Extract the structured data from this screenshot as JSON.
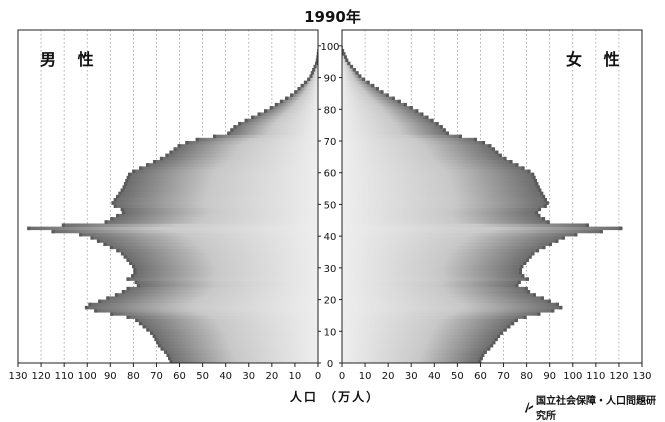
{
  "chart_data": {
    "type": "population-pyramid",
    "title": "1990年",
    "left_panel_label": "男 性",
    "right_panel_label": "女 性",
    "xlabel": "人口 （万人）",
    "source": "国立社会保障・人口問題研究所",
    "x_ticks": [
      130,
      120,
      110,
      100,
      90,
      80,
      70,
      60,
      50,
      40,
      30,
      20,
      10,
      0
    ],
    "age_ticks": [
      0,
      10,
      20,
      30,
      40,
      50,
      60,
      70,
      80,
      90,
      100
    ],
    "xlim": [
      0,
      130
    ],
    "ylim": [
      0,
      105
    ],
    "age_key_points": [
      0,
      3,
      5,
      9,
      14,
      15,
      16,
      17,
      18,
      19,
      21,
      22,
      24,
      25,
      26,
      28,
      30,
      35,
      40,
      41,
      42,
      43,
      44,
      45,
      46,
      47,
      48,
      50,
      55,
      60,
      65,
      69,
      70,
      71,
      72,
      75,
      80,
      85,
      90,
      95,
      100
    ],
    "series": [
      {
        "name": "男性",
        "values": [
          64,
          66,
          69,
          72,
          80,
          86,
          94,
          100,
          102,
          97,
          90,
          86,
          82,
          75,
          84,
          80,
          80,
          86,
          100,
          107,
          124,
          128,
          94,
          91,
          89,
          86,
          84,
          90,
          85,
          82,
          67,
          60,
          55,
          51,
          40,
          36,
          22,
          11,
          4,
          1,
          0
        ]
      },
      {
        "name": "女性",
        "values": [
          60,
          62,
          65,
          69,
          77,
          83,
          89,
          95,
          96,
          92,
          86,
          82,
          80,
          73,
          82,
          78,
          78,
          84,
          98,
          106,
          120,
          123,
          91,
          89,
          87,
          85,
          85,
          90,
          86,
          83,
          70,
          64,
          60,
          57,
          47,
          43,
          32,
          19,
          9,
          3,
          0
        ]
      }
    ],
    "grid": true,
    "colors": {
      "bar": "#8a8a8a",
      "bar_dark": "#5a5a5a",
      "grid": "#9a9a9a",
      "axis": "#222222"
    }
  }
}
